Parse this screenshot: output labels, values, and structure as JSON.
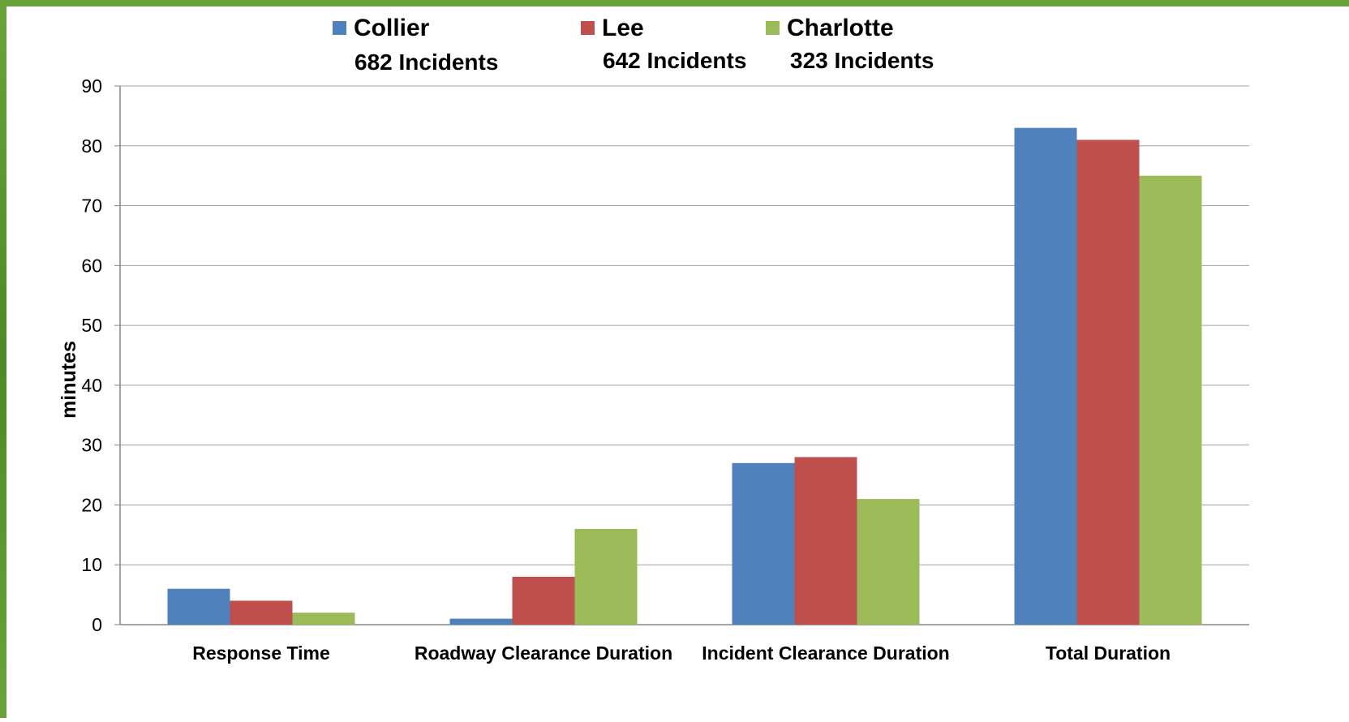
{
  "chart_data": {
    "type": "bar",
    "categories": [
      "Response Time",
      "Roadway Clearance Duration",
      "Incident Clearance Duration",
      "Total Duration"
    ],
    "series": [
      {
        "name": "Collier",
        "subtitle": "682 Incidents",
        "color": "#4f81bd",
        "values": [
          6,
          1,
          27,
          83
        ]
      },
      {
        "name": "Lee",
        "subtitle": "642 Incidents",
        "color": "#c0504d",
        "values": [
          4,
          8,
          28,
          81
        ]
      },
      {
        "name": "Charlotte",
        "subtitle": "323 Incidents",
        "color": "#9bbb59",
        "values": [
          2,
          16,
          21,
          75
        ]
      }
    ],
    "xlabel": "",
    "ylabel": "minutes",
    "ylim": [
      0,
      90
    ],
    "yticks": [
      0,
      10,
      20,
      30,
      40,
      50,
      60,
      70,
      80,
      90
    ],
    "grid": true,
    "legend_position": "top"
  }
}
